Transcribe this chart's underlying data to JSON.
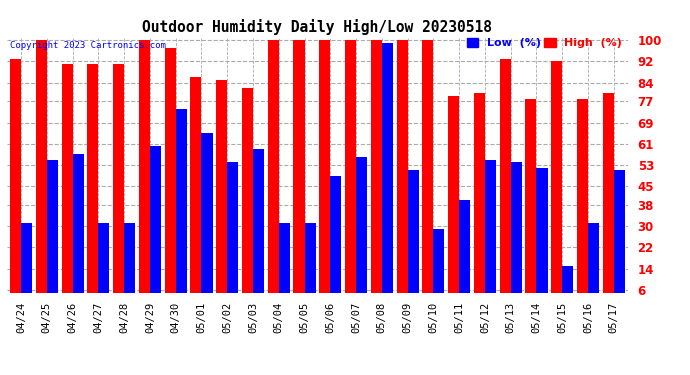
{
  "title": "Outdoor Humidity Daily High/Low 20230518",
  "copyright": "Copyright 2023 Cartronics.com",
  "legend_low": "Low  (%)",
  "legend_high": "High  (%)",
  "dates": [
    "04/24",
    "04/25",
    "04/26",
    "04/27",
    "04/28",
    "04/29",
    "04/30",
    "05/01",
    "05/02",
    "05/03",
    "05/04",
    "05/05",
    "05/06",
    "05/07",
    "05/08",
    "05/09",
    "05/10",
    "05/11",
    "05/12",
    "05/13",
    "05/14",
    "05/15",
    "05/16",
    "05/17"
  ],
  "high": [
    93,
    100,
    91,
    91,
    91,
    100,
    97,
    86,
    85,
    82,
    100,
    100,
    100,
    100,
    100,
    100,
    100,
    79,
    80,
    93,
    78,
    92,
    78,
    80
  ],
  "low": [
    31,
    55,
    57,
    31,
    31,
    60,
    74,
    65,
    54,
    59,
    31,
    31,
    49,
    56,
    99,
    51,
    29,
    40,
    55,
    54,
    52,
    15,
    31,
    51
  ],
  "high_color": "#ff0000",
  "low_color": "#0000ff",
  "bg_color": "#ffffff",
  "grid_color": "#aaaaaa",
  "title_color": "#000000",
  "yticks": [
    6,
    14,
    22,
    30,
    38,
    45,
    53,
    61,
    69,
    77,
    84,
    92,
    100
  ],
  "ymin": 6,
  "ymax": 100,
  "bar_width": 0.43
}
